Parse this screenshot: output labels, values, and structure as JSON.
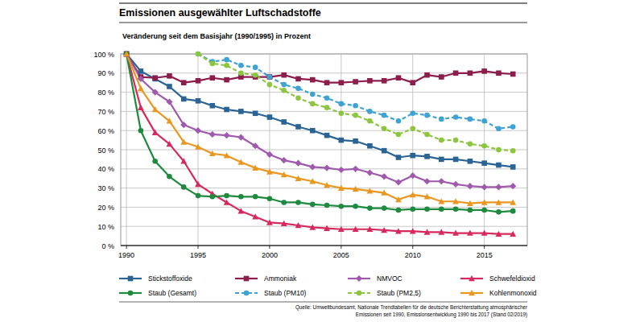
{
  "chart_data": {
    "type": "line",
    "title": "Emissionen ausgewählter Luftschadstoffe",
    "subtitle": "Veränderung seit dem Basisjahr (1990/1995) in Prozent",
    "source": [
      "Quelle: Umweltbundesamt, Nationale Trendtabellen für die deutsche Berichterstattung atmosphärischer",
      "Emissionen seit 1990, Emissionsentwicklung 1990 bis 2017 (Stand 02/2019)"
    ],
    "x": [
      1990,
      1991,
      1992,
      1993,
      1994,
      1995,
      1996,
      1997,
      1998,
      1999,
      2000,
      2001,
      2002,
      2003,
      2004,
      2005,
      2006,
      2007,
      2008,
      2009,
      2010,
      2011,
      2012,
      2013,
      2014,
      2015,
      2016,
      2017
    ],
    "xlim": [
      1989.6,
      2018
    ],
    "xticks": [
      1990,
      1995,
      2000,
      2005,
      2010,
      2015
    ],
    "ylim": [
      0,
      100
    ],
    "yticks": [
      {
        "value": 0,
        "label": "0 %"
      },
      {
        "value": 10,
        "label": "10 %"
      },
      {
        "value": 20,
        "label": "20 %"
      },
      {
        "value": 30,
        "label": "30 %"
      },
      {
        "value": 40,
        "label": "40 %"
      },
      {
        "value": 50,
        "label": "50 %"
      },
      {
        "value": 60,
        "label": "60 %"
      },
      {
        "value": 70,
        "label": "70 %"
      },
      {
        "value": 80,
        "label": "80 %"
      },
      {
        "value": 90,
        "label": "90 %"
      },
      {
        "value": 100,
        "label": "100 %"
      }
    ],
    "grid": true,
    "legend": "bottom",
    "series": [
      {
        "name": "Stickstoffoxide",
        "color": "#2a6494",
        "marker": "square",
        "line_style": "solid",
        "values": [
          100,
          91,
          87,
          83,
          76.5,
          75.5,
          73,
          71,
          70,
          69,
          67,
          64.5,
          62,
          60,
          57.5,
          55,
          54.5,
          52,
          49.5,
          46,
          47,
          46.5,
          45,
          45,
          44,
          43,
          42,
          41
        ]
      },
      {
        "name": "Ammoniak",
        "color": "#8c1d4c",
        "marker": "square",
        "line_style": "solid",
        "values": [
          100,
          88,
          87.5,
          88.5,
          85,
          86,
          87.5,
          86.5,
          88,
          88,
          88,
          89,
          87,
          86.5,
          85,
          85,
          85.5,
          86,
          86,
          87.5,
          85,
          89,
          88,
          90,
          90,
          91,
          90,
          89.5
        ]
      },
      {
        "name": "NMVOC",
        "color": "#a05aad",
        "marker": "diamond",
        "line_style": "solid",
        "values": [
          100,
          87,
          80,
          75,
          63,
          60,
          58,
          57.5,
          56.5,
          52,
          47.5,
          44.5,
          43,
          41,
          40.5,
          39.5,
          40,
          38,
          36,
          33,
          36.5,
          33.5,
          33.5,
          32,
          31,
          30.5,
          30.5,
          31
        ]
      },
      {
        "name": "Schwefeldioxid",
        "color": "#d62a5e",
        "marker": "triangle",
        "line_style": "solid",
        "values": [
          100,
          72,
          59,
          53,
          44,
          32,
          27,
          22.5,
          18,
          15,
          12,
          11.5,
          10.5,
          9.5,
          9,
          8.5,
          8.5,
          8.5,
          8,
          7.5,
          7.5,
          7,
          7,
          6.5,
          6.5,
          6.5,
          6,
          6
        ]
      },
      {
        "name": "Staub (Gesamt)",
        "color": "#1d8a3e",
        "marker": "circle",
        "line_style": "solid",
        "values": [
          100,
          60,
          44,
          36,
          30.5,
          26,
          25.5,
          26,
          25.5,
          25.5,
          24.5,
          22.5,
          22.5,
          21.5,
          21,
          20.5,
          20.5,
          19.5,
          19.5,
          18.5,
          19,
          19,
          19,
          19,
          18.5,
          18.5,
          17.5,
          18
        ]
      },
      {
        "name": "Staub (PM10)",
        "color": "#3ea2d3",
        "marker": "circle",
        "line_style": "dashed",
        "values": [
          null,
          null,
          null,
          null,
          null,
          100,
          96,
          97,
          94,
          93,
          88,
          84,
          82,
          79,
          77,
          74,
          73,
          70,
          68,
          65,
          69,
          68,
          66,
          67,
          66,
          65,
          61,
          62
        ]
      },
      {
        "name": "Staub (PM2,5)",
        "color": "#8cc63f",
        "marker": "circle",
        "line_style": "dashed",
        "values": [
          null,
          null,
          null,
          null,
          null,
          100,
          95,
          94,
          90,
          89,
          84,
          81,
          77,
          74,
          72,
          69,
          68,
          65,
          61,
          58,
          61,
          58,
          55,
          55,
          53,
          52,
          50,
          49.5
        ]
      },
      {
        "name": "Kohlenmonoxid",
        "color": "#e9971f",
        "marker": "triangle",
        "line_style": "solid",
        "values": [
          100,
          82,
          71,
          65,
          54,
          51.5,
          48,
          47,
          43.5,
          40.5,
          38.5,
          37,
          35,
          33.5,
          31.5,
          30,
          29.5,
          28.5,
          27.5,
          24,
          26.5,
          25.5,
          23,
          23,
          22,
          22.5,
          22.5,
          22.5
        ]
      }
    ]
  }
}
